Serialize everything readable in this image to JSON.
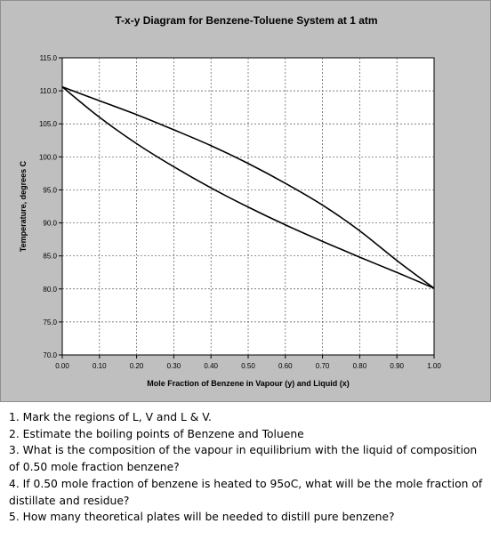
{
  "chart_data": {
    "type": "line",
    "title": "T-x-y Diagram for Benzene-Toluene System at 1 atm",
    "xlabel": "Mole Fraction of Benzene in Vapour (y) and Liquid (x)",
    "ylabel": "Temperature, degrees C",
    "xlim": [
      0,
      1
    ],
    "ylim": [
      70,
      115
    ],
    "x_ticks": [
      "0.00",
      "0.10",
      "0.20",
      "0.30",
      "0.40",
      "0.50",
      "0.60",
      "0.70",
      "0.80",
      "0.90",
      "1.00"
    ],
    "y_ticks": [
      "70.0",
      "75.0",
      "80.0",
      "85.0",
      "90.0",
      "95.0",
      "100.0",
      "105.0",
      "110.0",
      "115.0"
    ],
    "grid": true,
    "series": [
      {
        "x": [
          0.0,
          0.1,
          0.2,
          0.3,
          0.4,
          0.5,
          0.6,
          0.7,
          0.8,
          0.9,
          1.0
        ],
        "y": [
          110.6,
          106.0,
          102.0,
          98.5,
          95.3,
          92.4,
          89.7,
          87.2,
          84.8,
          82.5,
          80.1
        ]
      },
      {
        "x": [
          0.0,
          0.1,
          0.2,
          0.3,
          0.4,
          0.5,
          0.6,
          0.7,
          0.8,
          0.9,
          1.0
        ],
        "y": [
          110.6,
          108.5,
          106.4,
          104.1,
          101.7,
          99.0,
          96.0,
          92.7,
          88.8,
          84.3,
          80.1
        ]
      }
    ],
    "line_color": "#000000",
    "plot_background": "#ffffff",
    "panel_background": "#bfbfbf"
  },
  "questions": [
    "1. Mark the regions of L, V and L & V.",
    "2. Estimate the boiling points of Benzene and Toluene",
    "3. What is the composition of the vapour in equilibrium with the liquid of composition of 0.50 mole fraction benzene?",
    "4. If 0.50 mole fraction of benzene is heated to 95oC, what will be the mole fraction of distillate and residue?",
    "5. How many theoretical plates will be needed to distill pure benzene?"
  ]
}
